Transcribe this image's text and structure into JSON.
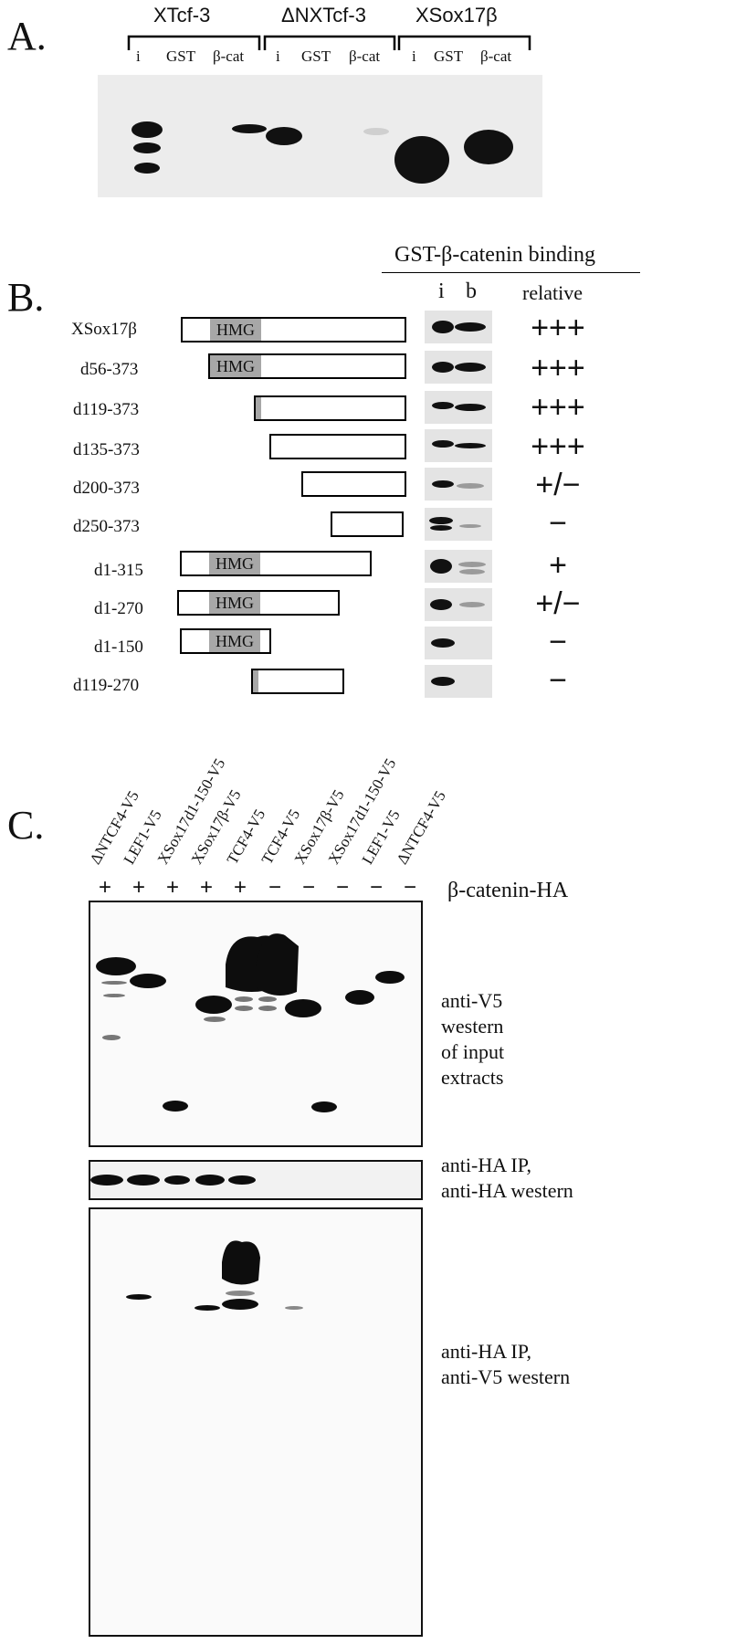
{
  "panelA": {
    "label": "A.",
    "groups": [
      "XTcf-3",
      "ΔNXTcf-3",
      "XSox17β"
    ],
    "lanes": [
      "i",
      "GST",
      "β-cat"
    ]
  },
  "panelB": {
    "label": "B.",
    "header": "GST-β-catenin binding",
    "col_i": "i",
    "col_b": "b",
    "col_relative": "relative",
    "domain_label": "HMG",
    "constructs": [
      {
        "name": "XSox17β",
        "relative": "+++"
      },
      {
        "name": "d56-373",
        "relative": "+++"
      },
      {
        "name": "d119-373",
        "relative": "+++"
      },
      {
        "name": "d135-373",
        "relative": "+++"
      },
      {
        "name": "d200-373",
        "relative": "+/−"
      },
      {
        "name": "d250-373",
        "relative": "−"
      },
      {
        "name": "d1-315",
        "relative": "+"
      },
      {
        "name": "d1-270",
        "relative": "+/−"
      },
      {
        "name": "d1-150",
        "relative": "−"
      },
      {
        "name": "d119-270",
        "relative": "−"
      }
    ]
  },
  "panelC": {
    "label": "C.",
    "lanes": [
      {
        "name": "ΔNTCF4-V5",
        "sign": "+"
      },
      {
        "name": "LEF1-V5",
        "sign": "+"
      },
      {
        "name": "XSox17d1-150-V5",
        "sign": "+"
      },
      {
        "name": "XSox17β-V5",
        "sign": "+"
      },
      {
        "name": "TCF4-V5",
        "sign": "+"
      },
      {
        "name": "TCF4-V5",
        "sign": "−"
      },
      {
        "name": "XSox17β-V5",
        "sign": "−"
      },
      {
        "name": "XSox17d1-150-V5",
        "sign": "−"
      },
      {
        "name": "LEF1-V5",
        "sign": "−"
      },
      {
        "name": "ΔNTCF4-V5",
        "sign": "−"
      }
    ],
    "beta_catenin_label": "β-catenin-HA",
    "blot1_label": [
      "anti-V5",
      "western",
      "of input",
      "extracts"
    ],
    "blot2_label": [
      "anti-HA IP,",
      "anti-HA western"
    ],
    "blot3_label": [
      "anti-HA IP,",
      "anti-V5 western"
    ]
  }
}
